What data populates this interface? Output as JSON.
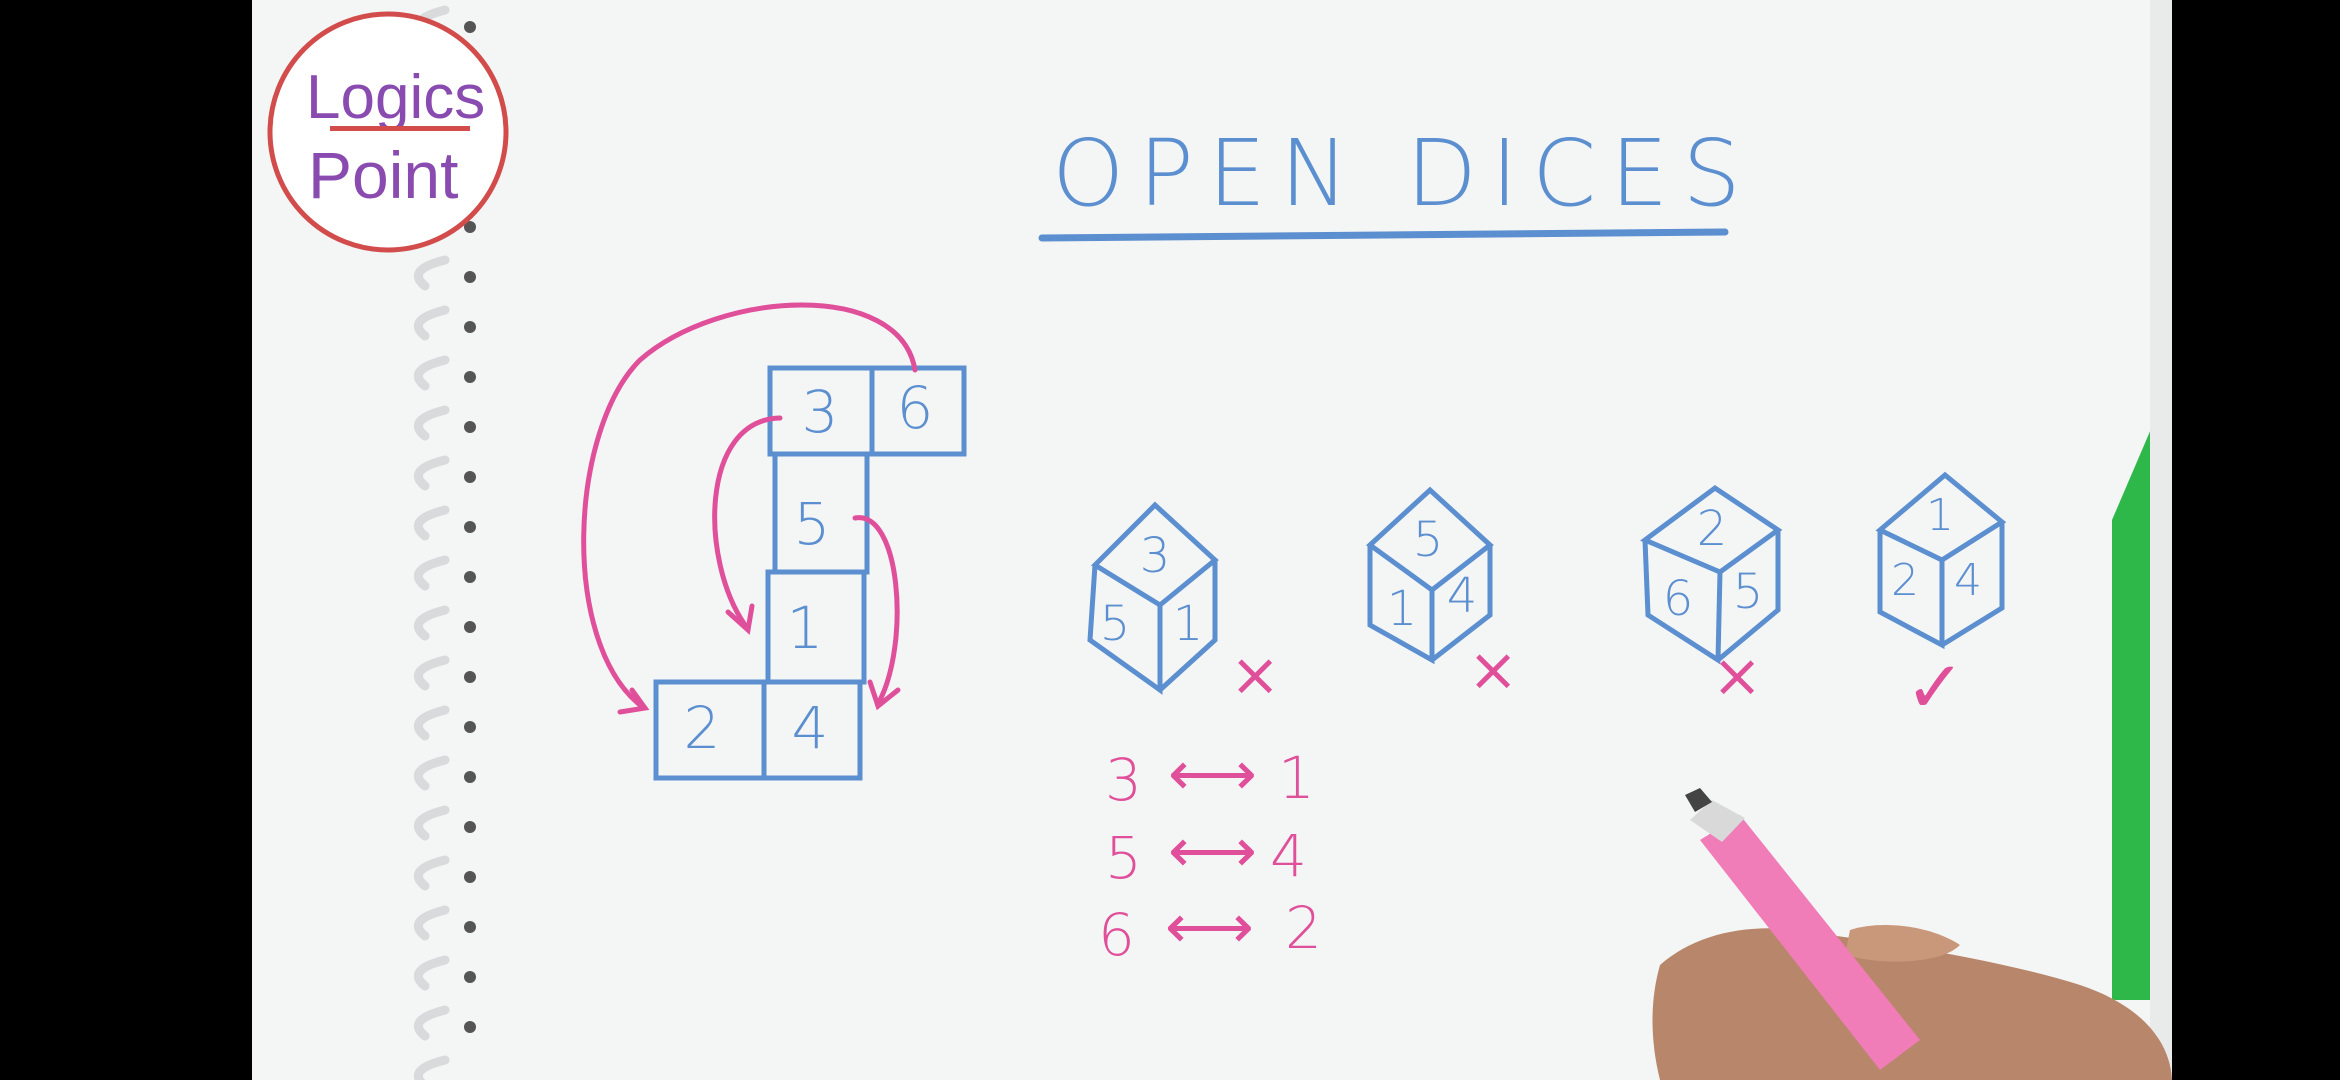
{
  "logo": {
    "line1": "Logics",
    "line2": "Point"
  },
  "title": "OPEN DICES",
  "net": {
    "faces": [
      "3",
      "6",
      "5",
      "1",
      "2",
      "4"
    ]
  },
  "dice": [
    {
      "top": "3",
      "left": "5",
      "right": "1",
      "verdict": "×"
    },
    {
      "top": "5",
      "left": "1",
      "right": "4",
      "verdict": "×"
    },
    {
      "top": "2",
      "left": "6",
      "right": "5",
      "verdict": "×"
    },
    {
      "top": "1",
      "left": "2",
      "right": "4",
      "verdict": "✓"
    }
  ],
  "opposite_pairs": [
    {
      "a": "3",
      "b": "1",
      "arrow": "⟷"
    },
    {
      "a": "5",
      "b": "4",
      "arrow": "⟷"
    },
    {
      "a": "6",
      "b": "2",
      "arrow": "⟷"
    }
  ],
  "colors": {
    "ink_blue": "#5b8fd0",
    "ink_pink": "#e0509a",
    "paper": "#f6f7f7",
    "logo_red": "#d24c4c",
    "logo_purple": "#8a4bb0"
  }
}
